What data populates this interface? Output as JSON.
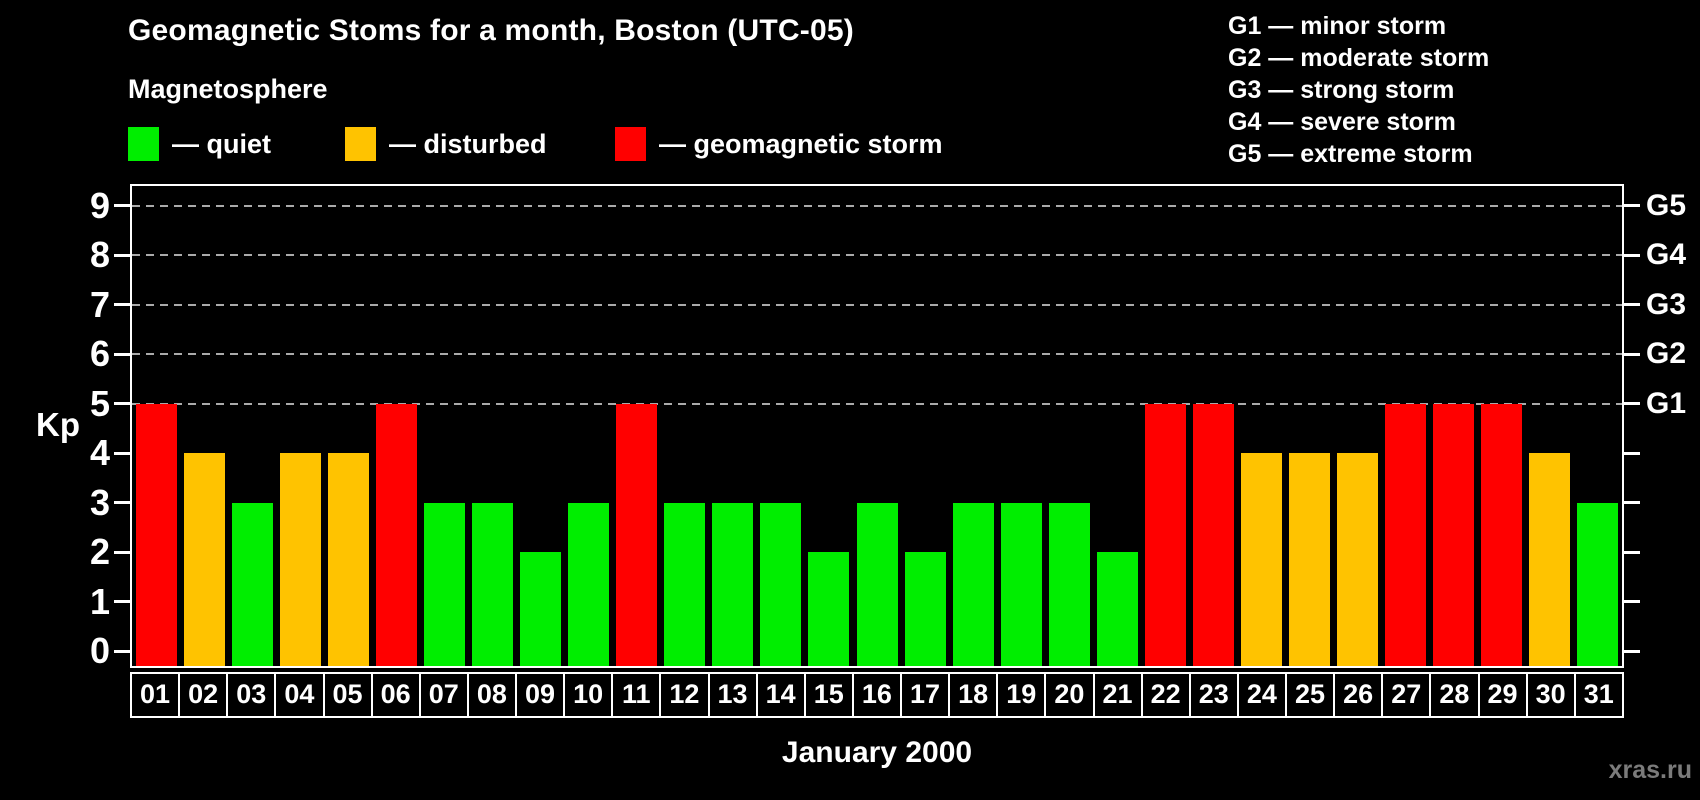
{
  "title": "Geomagnetic Stoms for a month, Boston (UTC-05)",
  "subtitle": "Magnetosphere",
  "legend": {
    "items": [
      {
        "key": "quiet",
        "label": "— quiet",
        "color": "#00ee00"
      },
      {
        "key": "disturbed",
        "label": "— disturbed",
        "color": "#ffc300"
      },
      {
        "key": "storm",
        "label": "— geomagnetic storm",
        "color": "#ff0000"
      }
    ]
  },
  "g_legend": [
    "G1 — minor storm",
    "G2 — moderate storm",
    "G3 — strong storm",
    "G4 — severe storm",
    "G5 — extreme storm"
  ],
  "axes": {
    "y_label": "Kp",
    "y_ticks": [
      0,
      1,
      2,
      3,
      4,
      5,
      6,
      7,
      8,
      9
    ],
    "right_scale": [
      {
        "kp": 5,
        "label": "G1"
      },
      {
        "kp": 6,
        "label": "G2"
      },
      {
        "kp": 7,
        "label": "G3"
      },
      {
        "kp": 8,
        "label": "G4"
      },
      {
        "kp": 9,
        "label": "G5"
      }
    ],
    "x_label": "January 2000"
  },
  "watermark": "xras.ru",
  "colors": {
    "background": "#000000",
    "bar_quiet": "#00ee00",
    "bar_disturbed": "#ffc300",
    "bar_storm": "#ff0000",
    "grid": "#aaaaaa",
    "axis": "#ffffff",
    "watermark": "#7b7b7b"
  },
  "chart_data": {
    "type": "bar",
    "title": "Geomagnetic Stoms for a month, Boston (UTC-05)",
    "xlabel": "January 2000",
    "ylabel": "Kp",
    "ylim": [
      0,
      9
    ],
    "grid": "dashed horizontal at Kp 5-9 only",
    "legend_position": "top-left",
    "categories": [
      "01",
      "02",
      "03",
      "04",
      "05",
      "06",
      "07",
      "08",
      "09",
      "10",
      "11",
      "12",
      "13",
      "14",
      "15",
      "16",
      "17",
      "18",
      "19",
      "20",
      "21",
      "22",
      "23",
      "24",
      "25",
      "26",
      "27",
      "28",
      "29",
      "30",
      "31"
    ],
    "values": [
      5,
      4,
      3,
      4,
      4,
      5,
      3,
      3,
      2,
      3,
      5,
      3,
      3,
      3,
      2,
      3,
      2,
      3,
      3,
      3,
      2,
      5,
      5,
      4,
      4,
      4,
      5,
      5,
      5,
      4,
      3
    ],
    "statuses": [
      "storm",
      "disturbed",
      "quiet",
      "disturbed",
      "disturbed",
      "storm",
      "quiet",
      "quiet",
      "quiet",
      "quiet",
      "storm",
      "quiet",
      "quiet",
      "quiet",
      "quiet",
      "quiet",
      "quiet",
      "quiet",
      "quiet",
      "quiet",
      "quiet",
      "storm",
      "storm",
      "disturbed",
      "disturbed",
      "disturbed",
      "storm",
      "storm",
      "storm",
      "disturbed",
      "quiet"
    ]
  }
}
